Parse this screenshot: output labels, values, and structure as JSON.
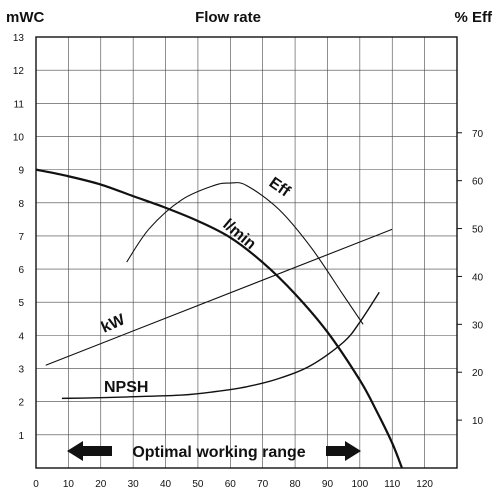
{
  "chart_data": {
    "type": "line",
    "title": "Flow rate",
    "ylabel_left": "mWC",
    "ylabel_right": "% Eff",
    "xlim": [
      0,
      130
    ],
    "ylim_left": [
      0,
      13
    ],
    "ylim_right": [
      0,
      90
    ],
    "x_ticks": [
      0,
      10,
      20,
      30,
      40,
      50,
      60,
      70,
      80,
      90,
      100,
      110,
      120
    ],
    "y_left_ticks": [
      1,
      2,
      3,
      4,
      5,
      6,
      7,
      8,
      9,
      10,
      11,
      12,
      13
    ],
    "y_right_ticks": [
      10,
      20,
      30,
      40,
      50,
      60,
      70
    ],
    "grid": true,
    "series": [
      {
        "name": "l/min",
        "axis": "left",
        "x": [
          0,
          10,
          20,
          30,
          40,
          50,
          60,
          70,
          80,
          90,
          100,
          105,
          110,
          113
        ],
        "y": [
          9.0,
          8.8,
          8.55,
          8.2,
          7.85,
          7.45,
          6.95,
          6.2,
          5.25,
          4.1,
          2.65,
          1.75,
          0.75,
          0
        ]
      },
      {
        "name": "Eff",
        "axis": "right",
        "x": [
          28,
          35,
          45,
          55,
          60,
          65,
          75,
          85,
          95,
          101
        ],
        "y": [
          43,
          50,
          56,
          59,
          59.5,
          59,
          54,
          46,
          36,
          30
        ]
      },
      {
        "name": "kW",
        "axis": "left",
        "x": [
          3,
          110
        ],
        "y": [
          3.1,
          7.2
        ]
      },
      {
        "name": "NPSH",
        "axis": "left",
        "x": [
          8,
          20,
          30,
          45,
          55,
          65,
          75,
          85,
          95,
          100,
          106
        ],
        "y": [
          2.1,
          2.12,
          2.15,
          2.2,
          2.3,
          2.45,
          2.7,
          3.1,
          3.8,
          4.4,
          5.3
        ]
      }
    ],
    "annotations": {
      "range_label": "Optimal working range",
      "range_x": [
        10,
        100
      ]
    }
  }
}
